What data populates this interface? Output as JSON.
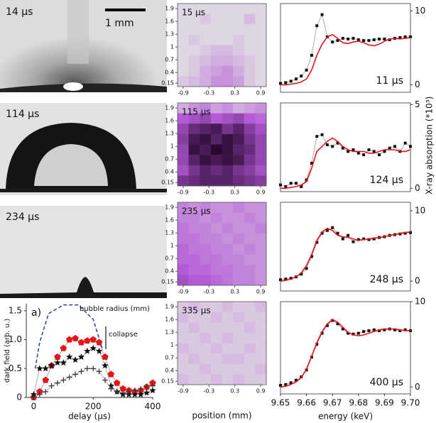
{
  "images": [
    {
      "label": "14 µs"
    },
    {
      "label": "114 µs"
    },
    {
      "label": "234 µs"
    }
  ],
  "scale_bar": "1 mm",
  "chart_data": [
    {
      "type": "line",
      "xlabel": "delay (µs)",
      "ylabel": "dark field (arb. u.)",
      "annotations": [
        "a)",
        "collapse"
      ],
      "xlim": [
        -25,
        400
      ],
      "ylim": [
        0,
        1.62
      ],
      "xticks": [
        0,
        200,
        400
      ],
      "yticks": [
        0,
        0.5,
        {
          "value": 1,
          "label": "1.0"
        },
        1.5
      ],
      "ytick_side": "left",
      "x": [
        0,
        20,
        40,
        60,
        80,
        100,
        120,
        140,
        160,
        180,
        200,
        220,
        240,
        260,
        280,
        300,
        320,
        340,
        360,
        380,
        400
      ],
      "series": [
        {
          "name": "bubble radius (mm)",
          "color": "#2b3f8f",
          "line": "dashed",
          "marker": "none",
          "x": [
            5,
            20,
            50,
            100,
            150,
            200,
            230
          ],
          "values": [
            0.5,
            0.95,
            1.45,
            1.6,
            1.6,
            1.35,
            0.85
          ]
        },
        {
          "color": "#e8141a",
          "line": "solid",
          "line_color": "#999999",
          "marker": "pentagon",
          "values": [
            0,
            0.1,
            0.3,
            0.55,
            0.7,
            0.85,
            1.0,
            1.02,
            0.95,
            0.98,
            1.0,
            0.95,
            0.7,
            0.4,
            0.25,
            0.15,
            0.12,
            0.1,
            0.12,
            0.18,
            0.25
          ]
        },
        {
          "color": "#111111",
          "line": "solid",
          "line_color": "#999999",
          "marker": "star",
          "values": [
            0.05,
            0.5,
            0.5,
            0.55,
            0.6,
            0.6,
            0.7,
            0.65,
            0.7,
            0.8,
            0.85,
            0.8,
            0.55,
            0.2,
            0.1,
            0.05,
            0.05,
            0.05,
            0.05,
            0.08,
            0.12
          ]
        },
        {
          "color": "#333333",
          "line": "solid",
          "line_color": "#999999",
          "marker": "plus",
          "values": [
            0,
            0.05,
            0.1,
            0.2,
            0.25,
            0.3,
            0.35,
            0.4,
            0.45,
            0.5,
            0.5,
            0.45,
            0.3,
            0.15,
            0.1,
            0.08,
            0.1,
            0.12,
            0.15,
            0.18,
            0.2
          ]
        }
      ]
    },
    {
      "type": "heatmap",
      "label": "15 µs",
      "xlim": [
        -1.03,
        1.03
      ],
      "ylim": [
        0.07,
        2.02
      ],
      "xticks": [
        -0.9,
        -0.3,
        0.3,
        0.9
      ],
      "yticks": [
        0.15,
        0.4,
        0.7,
        1,
        1.3,
        1.6,
        1.9
      ],
      "colorscale": [
        "#e4e4e4",
        "#b35ad6",
        "#1a0020"
      ],
      "z": [
        [
          0.05,
          0.05,
          0.05,
          0.05,
          0.05,
          0.05,
          0.05,
          0.05
        ],
        [
          0.05,
          0.05,
          0.1,
          0.05,
          0.05,
          0.05,
          0.15,
          0.05
        ],
        [
          0.05,
          0.05,
          0.05,
          0.05,
          0.05,
          0.05,
          0.05,
          0.05
        ],
        [
          0.05,
          0.1,
          0.05,
          0.05,
          0.05,
          0.1,
          0.05,
          0.05
        ],
        [
          0.05,
          0.05,
          0.1,
          0.15,
          0.15,
          0.1,
          0.05,
          0.05
        ],
        [
          0.05,
          0.1,
          0.15,
          0.2,
          0.2,
          0.15,
          0.1,
          0.05
        ],
        [
          0.05,
          0.1,
          0.2,
          0.25,
          0.3,
          0.2,
          0.1,
          0.05
        ],
        [
          0.1,
          0.15,
          0.2,
          0.3,
          0.3,
          0.25,
          0.1,
          0.05
        ]
      ]
    },
    {
      "type": "heatmap",
      "label": "115 µs",
      "xlim": [
        -1.03,
        1.03
      ],
      "ylim": [
        0.07,
        2.02
      ],
      "xticks": [
        -0.9,
        -0.3,
        0.3,
        0.9
      ],
      "yticks": [
        0.15,
        0.4,
        0.7,
        1,
        1.3,
        1.6,
        1.9
      ],
      "colorscale": [
        "#e4e4e4",
        "#b35ad6",
        "#1a0020"
      ],
      "z": [
        [
          0.2,
          0.3,
          0.35,
          0.25,
          0.3,
          0.2,
          0.25,
          0.3
        ],
        [
          0.5,
          0.55,
          0.6,
          0.5,
          0.55,
          0.6,
          0.5,
          0.45
        ],
        [
          0.6,
          0.75,
          0.8,
          0.85,
          0.7,
          0.8,
          0.65,
          0.55
        ],
        [
          0.65,
          0.85,
          0.9,
          0.8,
          0.9,
          0.85,
          0.7,
          0.6
        ],
        [
          0.6,
          0.9,
          0.85,
          0.95,
          0.9,
          0.8,
          0.75,
          0.6
        ],
        [
          0.6,
          0.8,
          0.9,
          0.85,
          0.9,
          0.85,
          0.7,
          0.6
        ],
        [
          0.55,
          0.7,
          0.8,
          0.75,
          0.8,
          0.7,
          0.65,
          0.55
        ],
        [
          0.7,
          0.75,
          0.8,
          0.8,
          0.8,
          0.75,
          0.7,
          0.65
        ]
      ]
    },
    {
      "type": "heatmap",
      "label": "235 µs",
      "xlim": [
        -1.03,
        1.03
      ],
      "ylim": [
        0.07,
        2.02
      ],
      "xticks": [
        -0.9,
        -0.3,
        0.3,
        0.9
      ],
      "yticks": [
        0.15,
        0.4,
        0.7,
        1,
        1.3,
        1.6,
        1.9
      ],
      "colorscale": [
        "#e4e4e4",
        "#b35ad6",
        "#1a0020"
      ],
      "z": [
        [
          0.35,
          0.3,
          0.35,
          0.3,
          0.3,
          0.35,
          0.3,
          0.3
        ],
        [
          0.35,
          0.35,
          0.3,
          0.35,
          0.3,
          0.3,
          0.35,
          0.3
        ],
        [
          0.4,
          0.35,
          0.35,
          0.3,
          0.35,
          0.3,
          0.3,
          0.35
        ],
        [
          0.4,
          0.4,
          0.35,
          0.35,
          0.3,
          0.35,
          0.3,
          0.3
        ],
        [
          0.45,
          0.4,
          0.4,
          0.35,
          0.35,
          0.3,
          0.35,
          0.3
        ],
        [
          0.45,
          0.45,
          0.4,
          0.4,
          0.35,
          0.35,
          0.3,
          0.3
        ],
        [
          0.5,
          0.45,
          0.45,
          0.4,
          0.4,
          0.35,
          0.35,
          0.3
        ],
        [
          0.55,
          0.5,
          0.5,
          0.45,
          0.4,
          0.35,
          0.35,
          0.3
        ]
      ]
    },
    {
      "type": "heatmap",
      "label": "335 µs",
      "xlabel": "position (mm)",
      "xlim": [
        -1.03,
        1.03
      ],
      "ylim": [
        0.07,
        2.02
      ],
      "xticks": [
        -0.9,
        -0.3,
        0.3,
        0.9
      ],
      "yticks": [
        0.15,
        0.4,
        0.7,
        1,
        1.3,
        1.6,
        1.9
      ],
      "colorscale": [
        "#e4e4e4",
        "#b35ad6",
        "#1a0020"
      ],
      "z": [
        [
          0.1,
          0.15,
          0.1,
          0.1,
          0.15,
          0.1,
          0.1,
          0.15
        ],
        [
          0.15,
          0.1,
          0.1,
          0.15,
          0.1,
          0.15,
          0.1,
          0.1
        ],
        [
          0.1,
          0.15,
          0.1,
          0.1,
          0.1,
          0.1,
          0.15,
          0.1
        ],
        [
          0.1,
          0.1,
          0.15,
          0.1,
          0.15,
          0.1,
          0.1,
          0.1
        ],
        [
          0.15,
          0.1,
          0.1,
          0.15,
          0.1,
          0.1,
          0.15,
          0.1
        ],
        [
          0.1,
          0.15,
          0.1,
          0.1,
          0.15,
          0.15,
          0.1,
          0.1
        ],
        [
          0.1,
          0.1,
          0.15,
          0.1,
          0.1,
          0.1,
          0.1,
          0.15
        ],
        [
          0.15,
          0.1,
          0.1,
          0.15,
          0.1,
          0.15,
          0.1,
          0.1
        ]
      ]
    },
    {
      "type": "line",
      "label": "11 µs",
      "xlim": [
        9.65,
        9.7
      ],
      "ylim": [
        -1,
        11
      ],
      "yticks": [
        0,
        10
      ],
      "ytick_side": "right",
      "x": [
        9.65,
        9.652,
        9.654,
        9.656,
        9.658,
        9.66,
        9.662,
        9.664,
        9.666,
        9.668,
        9.67,
        9.672,
        9.674,
        9.676,
        9.678,
        9.68,
        9.682,
        9.684,
        9.686,
        9.688,
        9.69,
        9.692,
        9.694,
        9.696,
        9.698,
        9.7
      ],
      "series": [
        {
          "color": "#111111",
          "line": "solid",
          "line_color": "#999999",
          "marker": "square",
          "values": [
            0.2,
            0.3,
            0.5,
            0.8,
            1.2,
            2,
            4,
            8,
            9.5,
            6.5,
            5.8,
            6,
            6.3,
            6.2,
            6.3,
            6.1,
            6,
            6,
            6.1,
            6.2,
            6.2,
            6.1,
            6.3,
            6.4,
            6.5,
            6.5
          ]
        },
        {
          "color": "#e8141a",
          "line": "solid",
          "marker": "none",
          "values": [
            0,
            0,
            0.1,
            0.2,
            0.4,
            0.8,
            2,
            4,
            5.5,
            6.5,
            6.8,
            6.3,
            5.7,
            5.6,
            5.8,
            5.9,
            5.7,
            5.4,
            5.3,
            5.5,
            5.9,
            6.2,
            6.3,
            6.2,
            6.3,
            6.4
          ]
        }
      ]
    },
    {
      "type": "line",
      "label": "124 µs",
      "ylabel": "X-ray absorption (*10³)",
      "xlim": [
        9.65,
        9.7
      ],
      "ylim": [
        -0.2,
        5.1
      ],
      "yticks": [
        0,
        5
      ],
      "ytick_side": "right",
      "x": [
        9.65,
        9.652,
        9.654,
        9.656,
        9.658,
        9.66,
        9.662,
        9.664,
        9.666,
        9.668,
        9.67,
        9.672,
        9.674,
        9.676,
        9.678,
        9.68,
        9.682,
        9.684,
        9.686,
        9.688,
        9.69,
        9.692,
        9.694,
        9.696,
        9.698,
        9.7
      ],
      "series": [
        {
          "color": "#111111",
          "line": "solid",
          "line_color": "#999999",
          "marker": "square",
          "values": [
            0.2,
            0.1,
            0.3,
            0.3,
            0.1,
            0.5,
            1.5,
            3.1,
            3.2,
            2.6,
            2.5,
            2.7,
            2.4,
            2.2,
            2.3,
            2.1,
            2.0,
            2.3,
            2.2,
            2.0,
            2.2,
            2.4,
            2.5,
            2.2,
            2.7,
            2.5
          ]
        },
        {
          "color": "#e8141a",
          "line": "solid",
          "marker": "none",
          "values": [
            0,
            0,
            0.05,
            0.1,
            0.2,
            0.4,
            1.2,
            2.2,
            2.5,
            2.8,
            3.0,
            2.8,
            2.5,
            2.3,
            2.2,
            2.2,
            2.2,
            2.1,
            2.1,
            2.2,
            2.3,
            2.3,
            2.3,
            2.2,
            2.2,
            2.3
          ]
        }
      ]
    },
    {
      "type": "line",
      "label": "248 µs",
      "xlim": [
        9.65,
        9.7
      ],
      "ylim": [
        -1.4,
        11.2
      ],
      "yticks": [
        0,
        10
      ],
      "ytick_side": "right",
      "x": [
        9.65,
        9.652,
        9.654,
        9.656,
        9.658,
        9.66,
        9.662,
        9.664,
        9.666,
        9.668,
        9.67,
        9.672,
        9.674,
        9.676,
        9.678,
        9.68,
        9.682,
        9.684,
        9.686,
        9.688,
        9.69,
        9.692,
        9.694,
        9.696,
        9.698,
        9.7
      ],
      "series": [
        {
          "color": "#111111",
          "line": "solid",
          "line_color": "#999999",
          "marker": "square",
          "values": [
            0.2,
            0.3,
            0.4,
            0.6,
            1,
            1.8,
            3.5,
            5.5,
            6.8,
            7.2,
            7.6,
            6.8,
            6,
            6.5,
            5.6,
            5.9,
            6,
            5.9,
            6,
            6.2,
            6.3,
            6.5,
            6.6,
            6.7,
            6.8,
            6.9
          ]
        },
        {
          "color": "#e8141a",
          "line": "solid",
          "marker": "none",
          "values": [
            0,
            0.1,
            0.3,
            0.6,
            1.2,
            2.2,
            3.8,
            5.8,
            7,
            7.5,
            7.2,
            6.5,
            6.3,
            6.2,
            6,
            5.8,
            5.9,
            6,
            6.1,
            6.2,
            6.3,
            6.5,
            6.6,
            6.8,
            6.9,
            7
          ]
        }
      ]
    },
    {
      "type": "line",
      "label": "400 µs",
      "xlabel": "energy (keV)",
      "xlim": [
        9.65,
        9.7
      ],
      "ylim": [
        -0.8,
        10
      ],
      "yticks": [
        0,
        10
      ],
      "ytick_side": "right",
      "xticks": [
        9.65,
        9.66,
        9.67,
        9.68,
        9.69,
        {
          "value": 9.7,
          "label": "9.70"
        }
      ],
      "x": [
        9.65,
        9.652,
        9.654,
        9.656,
        9.658,
        9.66,
        9.662,
        9.664,
        9.666,
        9.668,
        9.67,
        9.672,
        9.674,
        9.676,
        9.678,
        9.68,
        9.682,
        9.684,
        9.686,
        9.688,
        9.69,
        9.692,
        9.694,
        9.696,
        9.698,
        9.7
      ],
      "series": [
        {
          "color": "#111111",
          "line": "solid",
          "line_color": "#999999",
          "marker": "square",
          "values": [
            0.2,
            0.3,
            0.5,
            0.8,
            1.2,
            2,
            3.5,
            5,
            6.3,
            7.2,
            7.8,
            7.4,
            6.8,
            6.3,
            6.2,
            6.3,
            6.5,
            6.6,
            6.7,
            6.6,
            6.7,
            6.8,
            6.7,
            6.6,
            6.7,
            6.6
          ]
        },
        {
          "color": "#e8141a",
          "line": "solid",
          "marker": "none",
          "values": [
            0,
            0.1,
            0.3,
            0.6,
            1.1,
            2.1,
            3.6,
            5.2,
            6.5,
            7.4,
            7.9,
            7.6,
            7,
            6.4,
            6.1,
            6,
            6.1,
            6.3,
            6.5,
            6.7,
            6.8,
            6.8,
            6.8,
            6.7,
            6.6,
            6.6
          ]
        }
      ]
    }
  ]
}
